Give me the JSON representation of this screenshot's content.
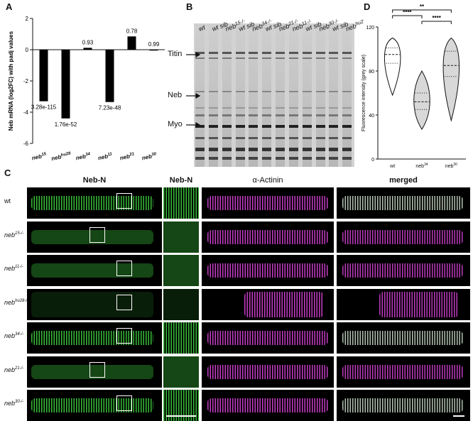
{
  "panels": {
    "A": "A",
    "B": "B",
    "C": "C",
    "D": "D"
  },
  "panelA": {
    "ylabel": "Neb mRNA (log2FC) with padj values",
    "chart_data": {
      "type": "bar",
      "categories": [
        "neb15",
        "nebhu28",
        "neb34",
        "neb11",
        "neb21",
        "neb30"
      ],
      "category_labels": [
        {
          "base": "neb",
          "sup": "15"
        },
        {
          "base": "neb",
          "sup": "hu28"
        },
        {
          "base": "neb",
          "sup": "34"
        },
        {
          "base": "neb",
          "sup": "11"
        },
        {
          "base": "neb",
          "sup": "21"
        },
        {
          "base": "neb",
          "sup": "30"
        }
      ],
      "values": [
        -3.3,
        -4.4,
        0.12,
        -3.35,
        0.85,
        0.0
      ],
      "annotations": [
        "3.28e-115",
        "1.76e-52",
        "0.93",
        "7.23e-48",
        "0.78",
        "0.99"
      ],
      "ylim": [
        -6,
        2
      ],
      "yticks": [
        "-6",
        "-4",
        "-2",
        "0",
        "2"
      ]
    }
  },
  "panelB": {
    "lane_labels": [
      {
        "base": "wt",
        "sup": ""
      },
      {
        "base": "wt sib",
        "sup": ""
      },
      {
        "base": "neb",
        "sup": "15-/-"
      },
      {
        "base": "wt sib",
        "sup": ""
      },
      {
        "base": "neb",
        "sup": "34-/-"
      },
      {
        "base": "wt sib",
        "sup": ""
      },
      {
        "base": "neb",
        "sup": "21-/-"
      },
      {
        "base": "neb",
        "sup": "11-/-"
      },
      {
        "base": "wt sib",
        "sup": ""
      },
      {
        "base": "neb",
        "sup": "30-/-"
      },
      {
        "base": "wt sib",
        "sup": ""
      },
      {
        "base": "neb",
        "sup": "hu28-/-"
      }
    ],
    "markers": [
      "Titin",
      "Neb",
      "Myo"
    ]
  },
  "panelD": {
    "ylabel": "Fluorescence intensity (grey scale)",
    "chart_data": {
      "type": "violin",
      "categories": [
        "wt",
        "neb34",
        "neb30"
      ],
      "category_labels": [
        {
          "base": "wt",
          "sup": ""
        },
        {
          "base": "neb",
          "sup": "34"
        },
        {
          "base": "neb",
          "sup": "30"
        }
      ],
      "median": [
        95,
        52,
        85
      ],
      "q1": [
        87,
        45,
        75
      ],
      "q3": [
        101,
        60,
        98
      ],
      "min": [
        58,
        27,
        35
      ],
      "max": [
        110,
        80,
        110
      ],
      "ylim": [
        0,
        120
      ],
      "yticks": [
        "0",
        "40",
        "80",
        "120"
      ],
      "significance": [
        {
          "pair": [
            "wt",
            "neb34"
          ],
          "label": "****"
        },
        {
          "pair": [
            "neb34",
            "neb30"
          ],
          "label": "****"
        },
        {
          "pair": [
            "wt",
            "neb30"
          ],
          "label": "**"
        }
      ]
    }
  },
  "panelC": {
    "columns": [
      "Neb-N",
      "Neb-N",
      "α-Actinin",
      "merged"
    ],
    "rows": [
      {
        "base": "wt",
        "sup": "",
        "italic": false
      },
      {
        "base": "neb",
        "sup": "15-/-",
        "italic": true
      },
      {
        "base": "neb",
        "sup": "11-/-",
        "italic": true
      },
      {
        "base": "neb",
        "sup": "hu28-/-",
        "italic": true
      },
      {
        "base": "neb",
        "sup": "34-/-",
        "italic": true
      },
      {
        "base": "neb",
        "sup": "21-/-",
        "italic": true
      },
      {
        "base": "neb",
        "sup": "30-/-",
        "italic": true
      }
    ],
    "green_signal": [
      "strong",
      "weak",
      "weak",
      "none",
      "strong",
      "weak",
      "strong"
    ],
    "colors": {
      "green": "#3cc83c",
      "magenta": "#d040d0",
      "merged": "#c8d8c8"
    }
  }
}
